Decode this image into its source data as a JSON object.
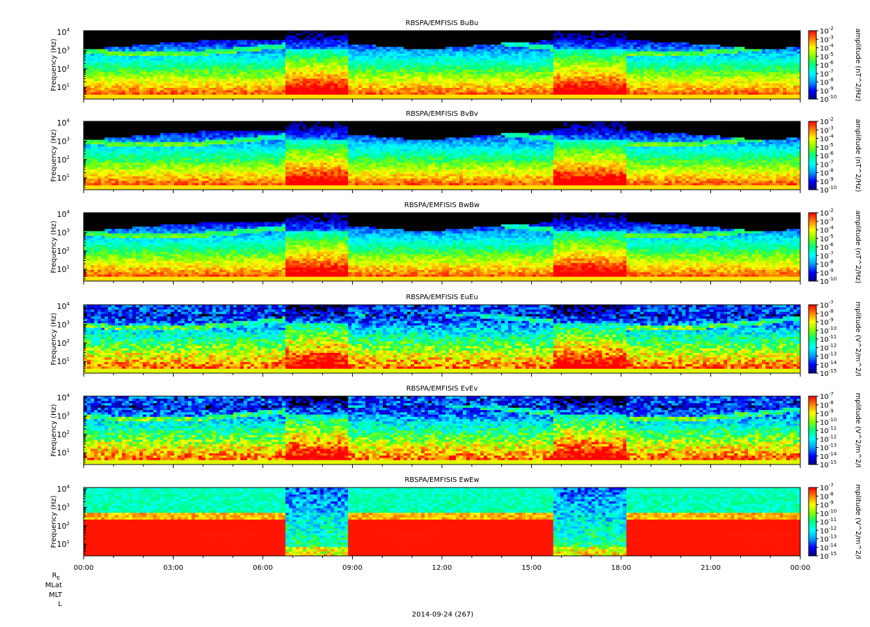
{
  "figure": {
    "date_label": "2014-09-24 (267)",
    "ephemeris_labels": [
      "R",
      "MLat",
      "MLT",
      "L"
    ],
    "ephemeris_subscript": "E"
  },
  "chart_data": [
    {
      "type": "heatmap",
      "title": "RBSPA/EMFISIS  BuBu",
      "ylabel": "Frequency (Hz)",
      "zlabel": "amplitude (nT^2/Hz)",
      "yscale": "log",
      "ylim": [
        2.3,
        12000
      ],
      "y_ticks": [
        {
          "base": "10",
          "exp": "1"
        },
        {
          "base": "10",
          "exp": "2"
        },
        {
          "base": "10",
          "exp": "3"
        },
        {
          "base": "10",
          "exp": "4"
        }
      ],
      "colorbar_ticks": [
        {
          "base": "10",
          "exp": "-2"
        },
        {
          "base": "10",
          "exp": "-3"
        },
        {
          "base": "10",
          "exp": "-4"
        },
        {
          "base": "10",
          "exp": "-5"
        },
        {
          "base": "10",
          "exp": "-6"
        },
        {
          "base": "10",
          "exp": "-7"
        },
        {
          "base": "10",
          "exp": "-8"
        },
        {
          "base": "10",
          "exp": "-9"
        },
        {
          "base": "10",
          "exp": "-10"
        }
      ],
      "colorbar_range": [
        -10,
        -2
      ],
      "colormap": [
        "#000080",
        "#0000ff",
        "#00a0ff",
        "#00ffff",
        "#00ff80",
        "#80ff00",
        "#ffff00",
        "#ff8000",
        "#ff0000"
      ]
    },
    {
      "type": "heatmap",
      "title": "RBSPA/EMFISIS  BvBv",
      "ylabel": "Frequency (Hz)",
      "zlabel": "amplitude (nT^2/Hz)",
      "yscale": "log",
      "ylim": [
        2.3,
        12000
      ],
      "y_ticks": [
        {
          "base": "10",
          "exp": "1"
        },
        {
          "base": "10",
          "exp": "2"
        },
        {
          "base": "10",
          "exp": "3"
        },
        {
          "base": "10",
          "exp": "4"
        }
      ],
      "colorbar_ticks": [
        {
          "base": "10",
          "exp": "-2"
        },
        {
          "base": "10",
          "exp": "-3"
        },
        {
          "base": "10",
          "exp": "-4"
        },
        {
          "base": "10",
          "exp": "-5"
        },
        {
          "base": "10",
          "exp": "-6"
        },
        {
          "base": "10",
          "exp": "-7"
        },
        {
          "base": "10",
          "exp": "-8"
        },
        {
          "base": "10",
          "exp": "-9"
        },
        {
          "base": "10",
          "exp": "-10"
        }
      ],
      "colorbar_range": [
        -10,
        -2
      ],
      "colormap": [
        "#000080",
        "#0000ff",
        "#00a0ff",
        "#00ffff",
        "#00ff80",
        "#80ff00",
        "#ffff00",
        "#ff8000",
        "#ff0000"
      ]
    },
    {
      "type": "heatmap",
      "title": "RBSPA/EMFISIS  BwBw",
      "ylabel": "Frequency (Hz)",
      "zlabel": "amplitude (nT^2/Hz)",
      "yscale": "log",
      "ylim": [
        2.3,
        12000
      ],
      "y_ticks": [
        {
          "base": "10",
          "exp": "1"
        },
        {
          "base": "10",
          "exp": "2"
        },
        {
          "base": "10",
          "exp": "3"
        },
        {
          "base": "10",
          "exp": "4"
        }
      ],
      "colorbar_ticks": [
        {
          "base": "10",
          "exp": "-2"
        },
        {
          "base": "10",
          "exp": "-3"
        },
        {
          "base": "10",
          "exp": "-4"
        },
        {
          "base": "10",
          "exp": "-5"
        },
        {
          "base": "10",
          "exp": "-6"
        },
        {
          "base": "10",
          "exp": "-7"
        },
        {
          "base": "10",
          "exp": "-8"
        },
        {
          "base": "10",
          "exp": "-9"
        },
        {
          "base": "10",
          "exp": "-10"
        }
      ],
      "colorbar_range": [
        -10,
        -2
      ],
      "colormap": [
        "#000080",
        "#0000ff",
        "#00a0ff",
        "#00ffff",
        "#00ff80",
        "#80ff00",
        "#ffff00",
        "#ff8000",
        "#ff0000"
      ]
    },
    {
      "type": "heatmap",
      "title": "RBSPA/EMFISIS  EuEu",
      "ylabel": "Frequency (Hz)",
      "zlabel": "mplitude (V^2/m^2/I",
      "yscale": "log",
      "ylim": [
        2.3,
        12000
      ],
      "y_ticks": [
        {
          "base": "10",
          "exp": "1"
        },
        {
          "base": "10",
          "exp": "2"
        },
        {
          "base": "10",
          "exp": "3"
        },
        {
          "base": "10",
          "exp": "4"
        }
      ],
      "colorbar_ticks": [
        {
          "base": "10",
          "exp": "-7"
        },
        {
          "base": "10",
          "exp": "-8"
        },
        {
          "base": "10",
          "exp": "-9"
        },
        {
          "base": "10",
          "exp": "-10"
        },
        {
          "base": "10",
          "exp": "-11"
        },
        {
          "base": "10",
          "exp": "-12"
        },
        {
          "base": "10",
          "exp": "-13"
        },
        {
          "base": "10",
          "exp": "-14"
        },
        {
          "base": "10",
          "exp": "-15"
        }
      ],
      "colorbar_range": [
        -15,
        -7
      ],
      "colormap": [
        "#000080",
        "#0000ff",
        "#00a0ff",
        "#00ffff",
        "#00ff80",
        "#80ff00",
        "#ffff00",
        "#ff8000",
        "#ff0000"
      ]
    },
    {
      "type": "heatmap",
      "title": "RBSPA/EMFISIS  EvEv",
      "ylabel": "Frequency (Hz)",
      "zlabel": "mplitude (V^2/m^2/I",
      "yscale": "log",
      "ylim": [
        2.3,
        12000
      ],
      "y_ticks": [
        {
          "base": "10",
          "exp": "1"
        },
        {
          "base": "10",
          "exp": "2"
        },
        {
          "base": "10",
          "exp": "3"
        },
        {
          "base": "10",
          "exp": "4"
        }
      ],
      "colorbar_ticks": [
        {
          "base": "10",
          "exp": "-7"
        },
        {
          "base": "10",
          "exp": "-8"
        },
        {
          "base": "10",
          "exp": "-9"
        },
        {
          "base": "10",
          "exp": "-10"
        },
        {
          "base": "10",
          "exp": "-11"
        },
        {
          "base": "10",
          "exp": "-12"
        },
        {
          "base": "10",
          "exp": "-13"
        },
        {
          "base": "10",
          "exp": "-14"
        },
        {
          "base": "10",
          "exp": "-15"
        }
      ],
      "colorbar_range": [
        -15,
        -7
      ],
      "colormap": [
        "#000080",
        "#0000ff",
        "#00a0ff",
        "#00ffff",
        "#00ff80",
        "#80ff00",
        "#ffff00",
        "#ff8000",
        "#ff0000"
      ]
    },
    {
      "type": "heatmap",
      "title": "RBSPA/EMFISIS  EwEw",
      "ylabel": "Frequency (Hz)",
      "zlabel": "mplitude (V^2/m^2/I",
      "yscale": "log",
      "ylim": [
        2.3,
        12000
      ],
      "y_ticks": [
        {
          "base": "10",
          "exp": "1"
        },
        {
          "base": "10",
          "exp": "2"
        },
        {
          "base": "10",
          "exp": "3"
        },
        {
          "base": "10",
          "exp": "4"
        }
      ],
      "colorbar_ticks": [
        {
          "base": "10",
          "exp": "-7"
        },
        {
          "base": "10",
          "exp": "-8"
        },
        {
          "base": "10",
          "exp": "-9"
        },
        {
          "base": "10",
          "exp": "-10"
        },
        {
          "base": "10",
          "exp": "-11"
        },
        {
          "base": "10",
          "exp": "-12"
        },
        {
          "base": "10",
          "exp": "-13"
        },
        {
          "base": "10",
          "exp": "-14"
        },
        {
          "base": "10",
          "exp": "-15"
        }
      ],
      "colorbar_range": [
        -15,
        -7
      ],
      "colormap": [
        "#000080",
        "#0000ff",
        "#00a0ff",
        "#00ffff",
        "#00ff80",
        "#80ff00",
        "#ffff00",
        "#ff8000",
        "#ff0000"
      ],
      "x_ticks": [
        "00:00",
        "03:00",
        "06:00",
        "09:00",
        "12:00",
        "15:00",
        "18:00",
        "21:00",
        "00:00"
      ]
    }
  ]
}
